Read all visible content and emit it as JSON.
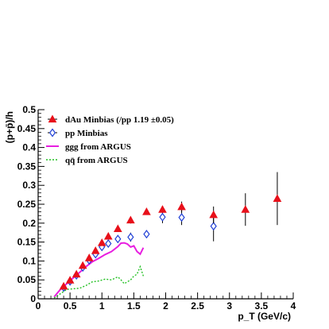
{
  "chart_data": {
    "type": "scatter",
    "xlabel": "p_T (GeV/c)",
    "ylabel": "(p+p̄)/h",
    "xlim": [
      0,
      4
    ],
    "ylim": [
      0,
      0.5
    ],
    "xticks": [
      0,
      0.5,
      1,
      1.5,
      2,
      2.5,
      3,
      3.5,
      4
    ],
    "xtick_labels": [
      "0",
      "0.5",
      "1",
      "1.5",
      "2",
      "2.5",
      "3",
      "3.5",
      "4"
    ],
    "yticks": [
      0,
      0.05,
      0.1,
      0.15,
      0.2,
      0.25,
      0.3,
      0.35,
      0.4,
      0.45,
      0.5
    ],
    "ytick_labels": [
      "0",
      "0.05",
      "0.1",
      "0.15",
      "0.2",
      "0.25",
      "0.3",
      "0.35",
      "0.4",
      "0.45",
      "0.5"
    ],
    "grid": false,
    "legend_position": "top-left",
    "series": [
      {
        "name": "dAu Minbias (/pp 1.19 ±0.05)",
        "kind": "points",
        "marker": "filled-triangle",
        "color": "#e8101a",
        "x": [
          0.4,
          0.5,
          0.6,
          0.7,
          0.8,
          0.9,
          1.0,
          1.1,
          1.25,
          1.45,
          1.7,
          1.95,
          2.25,
          2.75,
          3.25,
          3.75
        ],
        "y": [
          0.033,
          0.049,
          0.065,
          0.088,
          0.108,
          0.127,
          0.148,
          0.165,
          0.185,
          0.208,
          0.23,
          0.236,
          0.243,
          0.222,
          0.236,
          0.265
        ],
        "err": [
          0.003,
          0.003,
          0.003,
          0.004,
          0.004,
          0.005,
          0.006,
          0.007,
          0.008,
          0.009,
          0.008,
          0.008,
          0.014,
          0.022,
          0.043,
          0.07
        ]
      },
      {
        "name": "pp Minbias",
        "kind": "points",
        "marker": "open-diamond",
        "color": "#1f3fd6",
        "x": [
          0.4,
          0.5,
          0.6,
          0.7,
          0.8,
          0.9,
          1.0,
          1.1,
          1.25,
          1.45,
          1.7,
          1.95,
          2.25,
          2.75
        ],
        "y": [
          0.03,
          0.046,
          0.062,
          0.083,
          0.102,
          0.118,
          0.137,
          0.146,
          0.158,
          0.163,
          0.171,
          0.216,
          0.215,
          0.192
        ],
        "err": [
          0.003,
          0.003,
          0.004,
          0.004,
          0.005,
          0.006,
          0.008,
          0.009,
          0.01,
          0.012,
          0.01,
          0.016,
          0.02,
          0.04
        ]
      },
      {
        "name": "ggg from ARGUS",
        "kind": "line",
        "style": "solid",
        "color": "#e81ee0",
        "x": [
          0.25,
          0.35,
          0.45,
          0.55,
          0.65,
          0.75,
          0.85,
          0.95,
          1.05,
          1.15,
          1.25,
          1.3,
          1.35,
          1.4,
          1.45,
          1.5,
          1.55,
          1.6,
          1.65
        ],
        "y": [
          0.005,
          0.025,
          0.04,
          0.055,
          0.07,
          0.085,
          0.098,
          0.107,
          0.117,
          0.125,
          0.138,
          0.147,
          0.148,
          0.145,
          0.137,
          0.14,
          0.125,
          0.118,
          0.135
        ]
      },
      {
        "name": "qq̄ from ARGUS",
        "kind": "line",
        "style": "dashed",
        "color": "#22c022",
        "x": [
          0.25,
          0.45,
          0.65,
          0.75,
          0.85,
          0.95,
          1.05,
          1.15,
          1.25,
          1.3,
          1.35,
          1.45,
          1.5,
          1.55,
          1.6,
          1.65
        ],
        "y": [
          0.002,
          0.025,
          0.028,
          0.035,
          0.045,
          0.047,
          0.052,
          0.05,
          0.058,
          0.05,
          0.04,
          0.05,
          0.06,
          0.065,
          0.085,
          0.06
        ]
      }
    ]
  }
}
